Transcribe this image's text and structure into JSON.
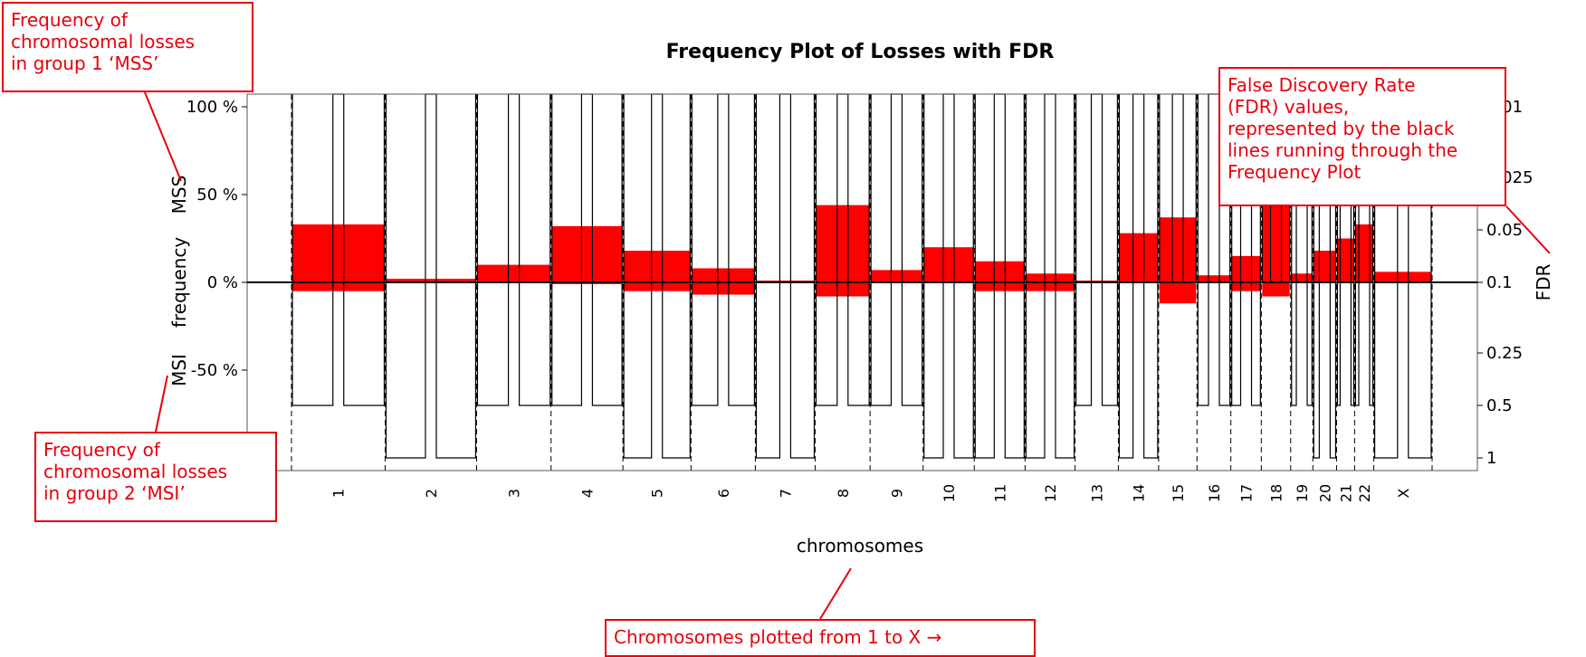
{
  "chart_data": {
    "type": "bar",
    "title": "Frequency Plot of Losses with FDR",
    "xlabel": "chromosomes",
    "ylabel": "frequency",
    "y2label": "FDR",
    "group_labels": {
      "top": "MSS",
      "bottom": "MSI"
    },
    "y_ticks": [
      "100 %",
      "50 %",
      "0 %",
      "-50 %"
    ],
    "ylim": [
      -100,
      100
    ],
    "fdr_ticks": [
      "0.01",
      "0.025",
      "0.05",
      "0.1",
      "0.25",
      "0.5",
      "1"
    ],
    "chromosomes": [
      "1",
      "2",
      "3",
      "4",
      "5",
      "6",
      "7",
      "8",
      "9",
      "10",
      "11",
      "12",
      "13",
      "14",
      "15",
      "16",
      "17",
      "18",
      "19",
      "20",
      "21",
      "22",
      "X"
    ],
    "series": [
      {
        "name": "MSS",
        "values": [
          33,
          2,
          10,
          32,
          18,
          8,
          1,
          44,
          7,
          20,
          12,
          5,
          1,
          28,
          37,
          4,
          15,
          45,
          5,
          18,
          25,
          33,
          6
        ]
      },
      {
        "name": "MSI",
        "values": [
          -5,
          0,
          0,
          -1,
          -5,
          -7,
          0,
          -8,
          0,
          0,
          -5,
          -5,
          0,
          0,
          -12,
          0,
          -5,
          -8,
          0,
          0,
          0,
          0,
          0
        ]
      }
    ],
    "fdr_profile": [
      0.5,
      1,
      0.5,
      0.5,
      1,
      0.5,
      1,
      0.5,
      0.5,
      1,
      1,
      1,
      0.5,
      1,
      0.1,
      0.5,
      0.5,
      0.1,
      0.5,
      1,
      0.5,
      0.5,
      1
    ]
  },
  "annotations": {
    "mss": "Frequency of\nchromosomal losses\nin group 1 ‘MSS’",
    "msi": "Frequency of\nchromosomal losses\nin group 2 ‘MSI’",
    "fdr": "False Discovery Rate\n(FDR) values,\nrepresented by the black\nlines running through the\nFrequency Plot",
    "chromosomes": "Chromosomes plotted from 1 to X →"
  },
  "colors": {
    "bars": "#ff0000",
    "callout": "#e8000b",
    "lines": "#000000"
  }
}
